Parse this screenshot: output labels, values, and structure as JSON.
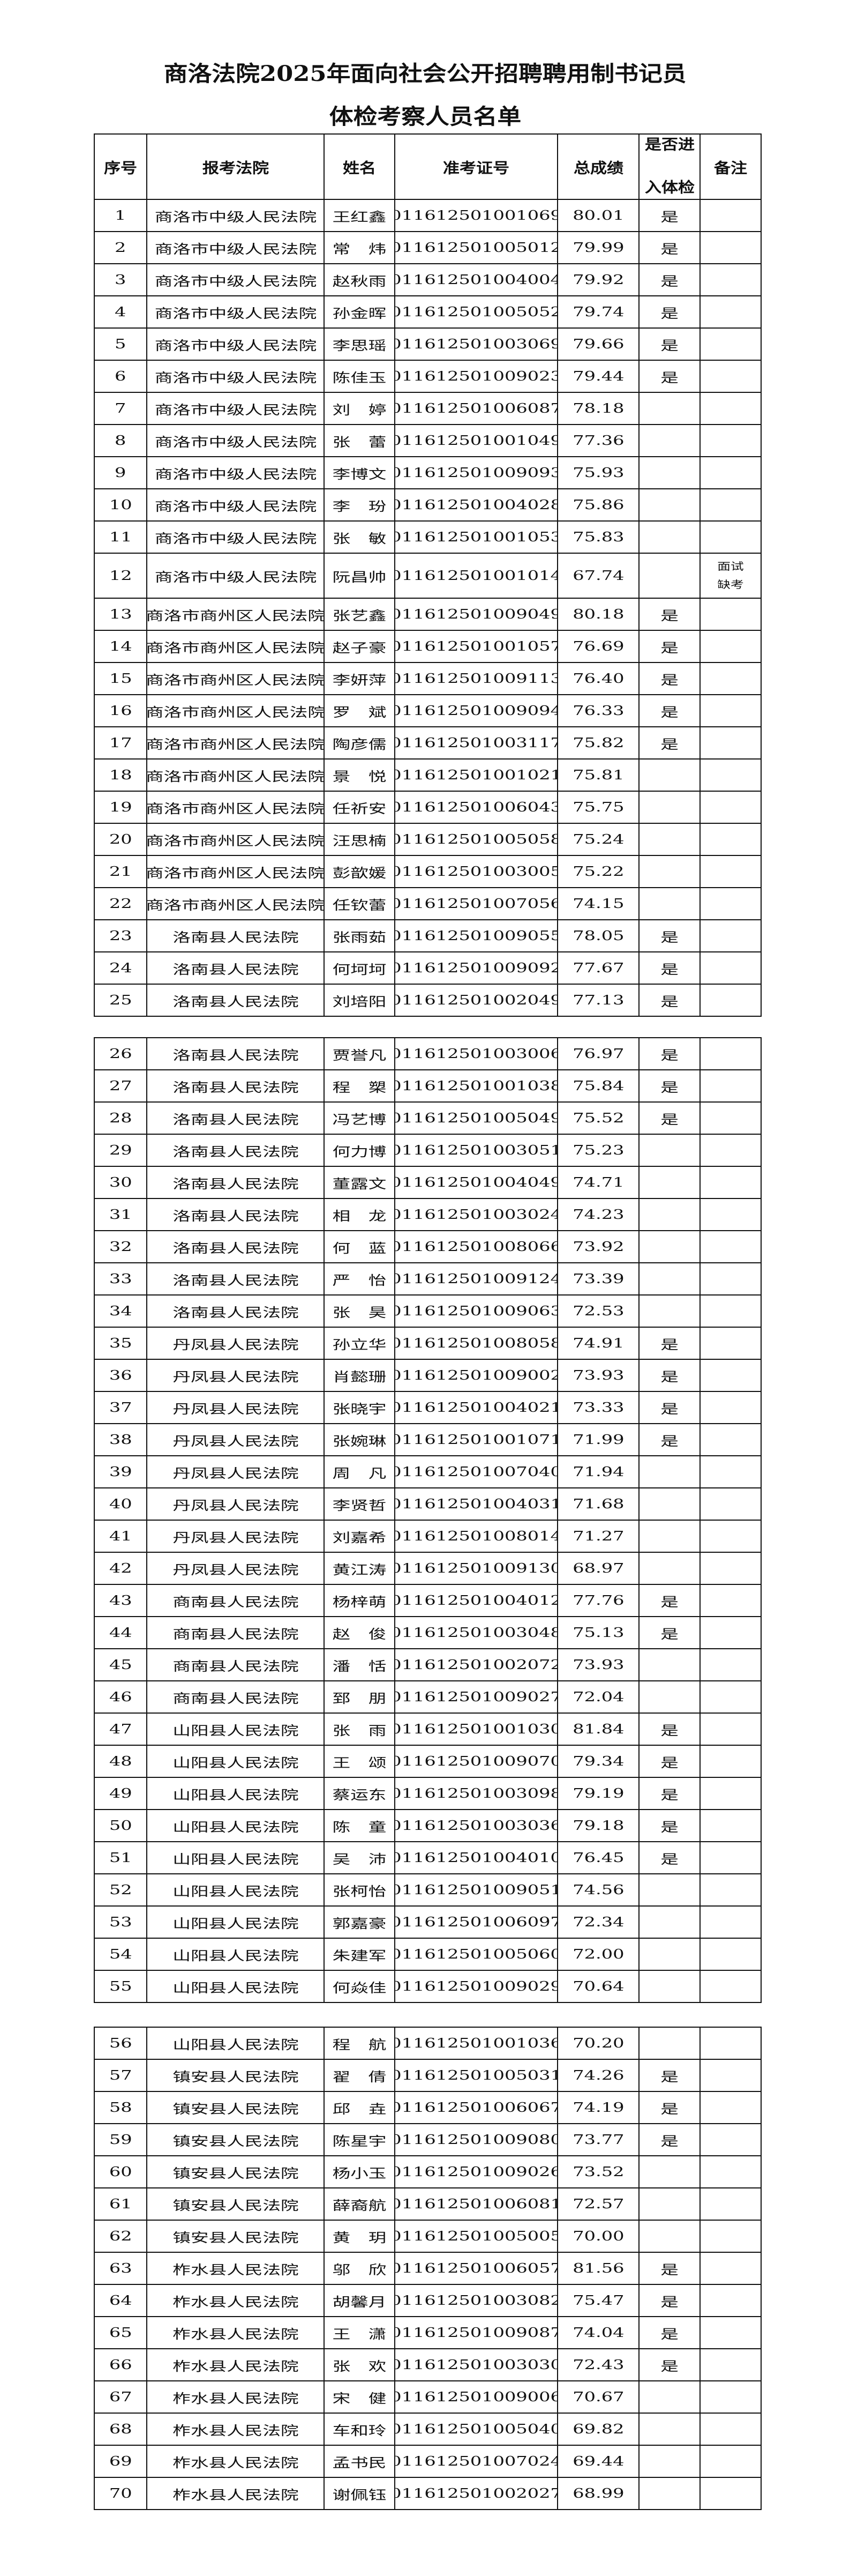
{
  "title": {
    "line1": "商洛法院2025年面向社会公开招聘聘用制书记员",
    "line2": "体检考察人员名单"
  },
  "headers": {
    "seq": "序号",
    "court": "报考法院",
    "name": "姓名",
    "ticket": "准考证号",
    "score": "总成绩",
    "physical_line1": "是否进",
    "physical_line2": "入体检",
    "remark": "备注"
  },
  "rows": [
    {
      "seq": "1",
      "court": "商洛市中级人民法院",
      "name": "王红鑫",
      "ticket": "011612501001069",
      "score": "80.01",
      "physical": "是",
      "remark": ""
    },
    {
      "seq": "2",
      "court": "商洛市中级人民法院",
      "name": "常　炜",
      "ticket": "011612501005012",
      "score": "79.99",
      "physical": "是",
      "remark": ""
    },
    {
      "seq": "3",
      "court": "商洛市中级人民法院",
      "name": "赵秋雨",
      "ticket": "011612501004004",
      "score": "79.92",
      "physical": "是",
      "remark": ""
    },
    {
      "seq": "4",
      "court": "商洛市中级人民法院",
      "name": "孙金晖",
      "ticket": "011612501005052",
      "score": "79.74",
      "physical": "是",
      "remark": ""
    },
    {
      "seq": "5",
      "court": "商洛市中级人民法院",
      "name": "李思瑶",
      "ticket": "011612501003069",
      "score": "79.66",
      "physical": "是",
      "remark": ""
    },
    {
      "seq": "6",
      "court": "商洛市中级人民法院",
      "name": "陈佳玉",
      "ticket": "011612501009023",
      "score": "79.44",
      "physical": "是",
      "remark": ""
    },
    {
      "seq": "7",
      "court": "商洛市中级人民法院",
      "name": "刘　婷",
      "ticket": "011612501006087",
      "score": "78.18",
      "physical": "",
      "remark": ""
    },
    {
      "seq": "8",
      "court": "商洛市中级人民法院",
      "name": "张　蕾",
      "ticket": "011612501001049",
      "score": "77.36",
      "physical": "",
      "remark": ""
    },
    {
      "seq": "9",
      "court": "商洛市中级人民法院",
      "name": "李博文",
      "ticket": "011612501009093",
      "score": "75.93",
      "physical": "",
      "remark": ""
    },
    {
      "seq": "10",
      "court": "商洛市中级人民法院",
      "name": "李　玢",
      "ticket": "011612501004028",
      "score": "75.86",
      "physical": "",
      "remark": ""
    },
    {
      "seq": "11",
      "court": "商洛市中级人民法院",
      "name": "张　敏",
      "ticket": "011612501001053",
      "score": "75.83",
      "physical": "",
      "remark": ""
    },
    {
      "seq": "12",
      "court": "商洛市中级人民法院",
      "name": "阮昌帅",
      "ticket": "011612501001014",
      "score": "67.74",
      "physical": "",
      "remark": "面试缺考"
    },
    {
      "seq": "13",
      "court": "商洛市商州区人民法院",
      "name": "张艺鑫",
      "ticket": "011612501009049",
      "score": "80.18",
      "physical": "是",
      "remark": ""
    },
    {
      "seq": "14",
      "court": "商洛市商州区人民法院",
      "name": "赵子豪",
      "ticket": "011612501001057",
      "score": "76.69",
      "physical": "是",
      "remark": ""
    },
    {
      "seq": "15",
      "court": "商洛市商州区人民法院",
      "name": "李妍萍",
      "ticket": "011612501009113",
      "score": "76.40",
      "physical": "是",
      "remark": ""
    },
    {
      "seq": "16",
      "court": "商洛市商州区人民法院",
      "name": "罗　斌",
      "ticket": "011612501009094",
      "score": "76.33",
      "physical": "是",
      "remark": ""
    },
    {
      "seq": "17",
      "court": "商洛市商州区人民法院",
      "name": "陶彦儒",
      "ticket": "011612501003117",
      "score": "75.82",
      "physical": "是",
      "remark": ""
    },
    {
      "seq": "18",
      "court": "商洛市商州区人民法院",
      "name": "景　悦",
      "ticket": "011612501001021",
      "score": "75.81",
      "physical": "",
      "remark": ""
    },
    {
      "seq": "19",
      "court": "商洛市商州区人民法院",
      "name": "任祈安",
      "ticket": "011612501006043",
      "score": "75.75",
      "physical": "",
      "remark": ""
    },
    {
      "seq": "20",
      "court": "商洛市商州区人民法院",
      "name": "汪思楠",
      "ticket": "011612501005058",
      "score": "75.24",
      "physical": "",
      "remark": ""
    },
    {
      "seq": "21",
      "court": "商洛市商州区人民法院",
      "name": "彭歆媛",
      "ticket": "011612501003005",
      "score": "75.22",
      "physical": "",
      "remark": ""
    },
    {
      "seq": "22",
      "court": "商洛市商州区人民法院",
      "name": "任钦蕾",
      "ticket": "011612501007056",
      "score": "74.15",
      "physical": "",
      "remark": ""
    },
    {
      "seq": "23",
      "court": "洛南县人民法院",
      "name": "张雨茹",
      "ticket": "011612501009055",
      "score": "78.05",
      "physical": "是",
      "remark": ""
    },
    {
      "seq": "24",
      "court": "洛南县人民法院",
      "name": "何坷坷",
      "ticket": "011612501009092",
      "score": "77.67",
      "physical": "是",
      "remark": ""
    },
    {
      "seq": "25",
      "court": "洛南县人民法院",
      "name": "刘培阳",
      "ticket": "011612501002049",
      "score": "77.13",
      "physical": "是",
      "remark": ""
    },
    {
      "seq": "26",
      "court": "洛南县人民法院",
      "name": "贾誉凡",
      "ticket": "011612501003006",
      "score": "76.97",
      "physical": "是",
      "remark": ""
    },
    {
      "seq": "27",
      "court": "洛南县人民法院",
      "name": "程　槊",
      "ticket": "011612501001038",
      "score": "75.84",
      "physical": "是",
      "remark": ""
    },
    {
      "seq": "28",
      "court": "洛南县人民法院",
      "name": "冯艺博",
      "ticket": "011612501005049",
      "score": "75.52",
      "physical": "是",
      "remark": ""
    },
    {
      "seq": "29",
      "court": "洛南县人民法院",
      "name": "何力博",
      "ticket": "011612501003051",
      "score": "75.23",
      "physical": "",
      "remark": ""
    },
    {
      "seq": "30",
      "court": "洛南县人民法院",
      "name": "董露文",
      "ticket": "011612501004049",
      "score": "74.71",
      "physical": "",
      "remark": ""
    },
    {
      "seq": "31",
      "court": "洛南县人民法院",
      "name": "相　龙",
      "ticket": "011612501003024",
      "score": "74.23",
      "physical": "",
      "remark": ""
    },
    {
      "seq": "32",
      "court": "洛南县人民法院",
      "name": "何　蓝",
      "ticket": "011612501008066",
      "score": "73.92",
      "physical": "",
      "remark": ""
    },
    {
      "seq": "33",
      "court": "洛南县人民法院",
      "name": "严　怡",
      "ticket": "011612501009124",
      "score": "73.39",
      "physical": "",
      "remark": ""
    },
    {
      "seq": "34",
      "court": "洛南县人民法院",
      "name": "张　昊",
      "ticket": "011612501009063",
      "score": "72.53",
      "physical": "",
      "remark": ""
    },
    {
      "seq": "35",
      "court": "丹凤县人民法院",
      "name": "孙立华",
      "ticket": "011612501008058",
      "score": "74.91",
      "physical": "是",
      "remark": ""
    },
    {
      "seq": "36",
      "court": "丹凤县人民法院",
      "name": "肖懿珊",
      "ticket": "011612501009002",
      "score": "73.93",
      "physical": "是",
      "remark": ""
    },
    {
      "seq": "37",
      "court": "丹凤县人民法院",
      "name": "张晓宇",
      "ticket": "011612501004021",
      "score": "73.33",
      "physical": "是",
      "remark": ""
    },
    {
      "seq": "38",
      "court": "丹凤县人民法院",
      "name": "张婉琳",
      "ticket": "011612501001071",
      "score": "71.99",
      "physical": "是",
      "remark": ""
    },
    {
      "seq": "39",
      "court": "丹凤县人民法院",
      "name": "周　凡",
      "ticket": "011612501007040",
      "score": "71.94",
      "physical": "",
      "remark": ""
    },
    {
      "seq": "40",
      "court": "丹凤县人民法院",
      "name": "李贤哲",
      "ticket": "011612501004031",
      "score": "71.68",
      "physical": "",
      "remark": ""
    },
    {
      "seq": "41",
      "court": "丹凤县人民法院",
      "name": "刘嘉希",
      "ticket": "011612501008014",
      "score": "71.27",
      "physical": "",
      "remark": ""
    },
    {
      "seq": "42",
      "court": "丹凤县人民法院",
      "name": "黄江涛",
      "ticket": "011612501009130",
      "score": "68.97",
      "physical": "",
      "remark": ""
    },
    {
      "seq": "43",
      "court": "商南县人民法院",
      "name": "杨梓萌",
      "ticket": "011612501004012",
      "score": "77.76",
      "physical": "是",
      "remark": ""
    },
    {
      "seq": "44",
      "court": "商南县人民法院",
      "name": "赵　俊",
      "ticket": "011612501003048",
      "score": "75.13",
      "physical": "是",
      "remark": ""
    },
    {
      "seq": "45",
      "court": "商南县人民法院",
      "name": "潘　恬",
      "ticket": "011612501002072",
      "score": "73.93",
      "physical": "",
      "remark": ""
    },
    {
      "seq": "46",
      "court": "商南县人民法院",
      "name": "郅　朋",
      "ticket": "011612501009027",
      "score": "72.04",
      "physical": "",
      "remark": ""
    },
    {
      "seq": "47",
      "court": "山阳县人民法院",
      "name": "张　雨",
      "ticket": "011612501001030",
      "score": "81.84",
      "physical": "是",
      "remark": ""
    },
    {
      "seq": "48",
      "court": "山阳县人民法院",
      "name": "王　颂",
      "ticket": "011612501009070",
      "score": "79.34",
      "physical": "是",
      "remark": ""
    },
    {
      "seq": "49",
      "court": "山阳县人民法院",
      "name": "蔡运东",
      "ticket": "011612501003098",
      "score": "79.19",
      "physical": "是",
      "remark": ""
    },
    {
      "seq": "50",
      "court": "山阳县人民法院",
      "name": "陈　童",
      "ticket": "011612501003036",
      "score": "79.18",
      "physical": "是",
      "remark": ""
    },
    {
      "seq": "51",
      "court": "山阳县人民法院",
      "name": "吴　沛",
      "ticket": "011612501004010",
      "score": "76.45",
      "physical": "是",
      "remark": ""
    },
    {
      "seq": "52",
      "court": "山阳县人民法院",
      "name": "张柯怡",
      "ticket": "011612501009051",
      "score": "74.56",
      "physical": "",
      "remark": ""
    },
    {
      "seq": "53",
      "court": "山阳县人民法院",
      "name": "郭嘉豪",
      "ticket": "011612501006097",
      "score": "72.34",
      "physical": "",
      "remark": ""
    },
    {
      "seq": "54",
      "court": "山阳县人民法院",
      "name": "朱建军",
      "ticket": "011612501005060",
      "score": "72.00",
      "physical": "",
      "remark": ""
    },
    {
      "seq": "55",
      "court": "山阳县人民法院",
      "name": "何焱佳",
      "ticket": "011612501009029",
      "score": "70.64",
      "physical": "",
      "remark": ""
    },
    {
      "seq": "56",
      "court": "山阳县人民法院",
      "name": "程　航",
      "ticket": "011612501001036",
      "score": "70.20",
      "physical": "",
      "remark": ""
    },
    {
      "seq": "57",
      "court": "镇安县人民法院",
      "name": "翟　倩",
      "ticket": "011612501005031",
      "score": "74.26",
      "physical": "是",
      "remark": ""
    },
    {
      "seq": "58",
      "court": "镇安县人民法院",
      "name": "邱　垚",
      "ticket": "011612501006067",
      "score": "74.19",
      "physical": "是",
      "remark": ""
    },
    {
      "seq": "59",
      "court": "镇安县人民法院",
      "name": "陈星宇",
      "ticket": "011612501009080",
      "score": "73.77",
      "physical": "是",
      "remark": ""
    },
    {
      "seq": "60",
      "court": "镇安县人民法院",
      "name": "杨小玉",
      "ticket": "011612501009026",
      "score": "73.52",
      "physical": "",
      "remark": ""
    },
    {
      "seq": "61",
      "court": "镇安县人民法院",
      "name": "薛裔航",
      "ticket": "011612501006081",
      "score": "72.57",
      "physical": "",
      "remark": ""
    },
    {
      "seq": "62",
      "court": "镇安县人民法院",
      "name": "黄　玥",
      "ticket": "011612501005005",
      "score": "70.00",
      "physical": "",
      "remark": ""
    },
    {
      "seq": "63",
      "court": "柞水县人民法院",
      "name": "邬　欣",
      "ticket": "011612501006057",
      "score": "81.56",
      "physical": "是",
      "remark": ""
    },
    {
      "seq": "64",
      "court": "柞水县人民法院",
      "name": "胡馨月",
      "ticket": "011612501003082",
      "score": "75.47",
      "physical": "是",
      "remark": ""
    },
    {
      "seq": "65",
      "court": "柞水县人民法院",
      "name": "王　潇",
      "ticket": "011612501009087",
      "score": "74.04",
      "physical": "是",
      "remark": ""
    },
    {
      "seq": "66",
      "court": "柞水县人民法院",
      "name": "张　欢",
      "ticket": "011612501003030",
      "score": "72.43",
      "physical": "是",
      "remark": ""
    },
    {
      "seq": "67",
      "court": "柞水县人民法院",
      "name": "宋　健",
      "ticket": "011612501009006",
      "score": "70.67",
      "physical": "",
      "remark": ""
    },
    {
      "seq": "68",
      "court": "柞水县人民法院",
      "name": "车和玲",
      "ticket": "011612501005040",
      "score": "69.82",
      "physical": "",
      "remark": ""
    },
    {
      "seq": "69",
      "court": "柞水县人民法院",
      "name": "孟书民",
      "ticket": "011612501007024",
      "score": "69.44",
      "physical": "",
      "remark": ""
    },
    {
      "seq": "70",
      "court": "柞水县人民法院",
      "name": "谢佩钰",
      "ticket": "011612501002027",
      "score": "68.99",
      "physical": "",
      "remark": ""
    }
  ]
}
